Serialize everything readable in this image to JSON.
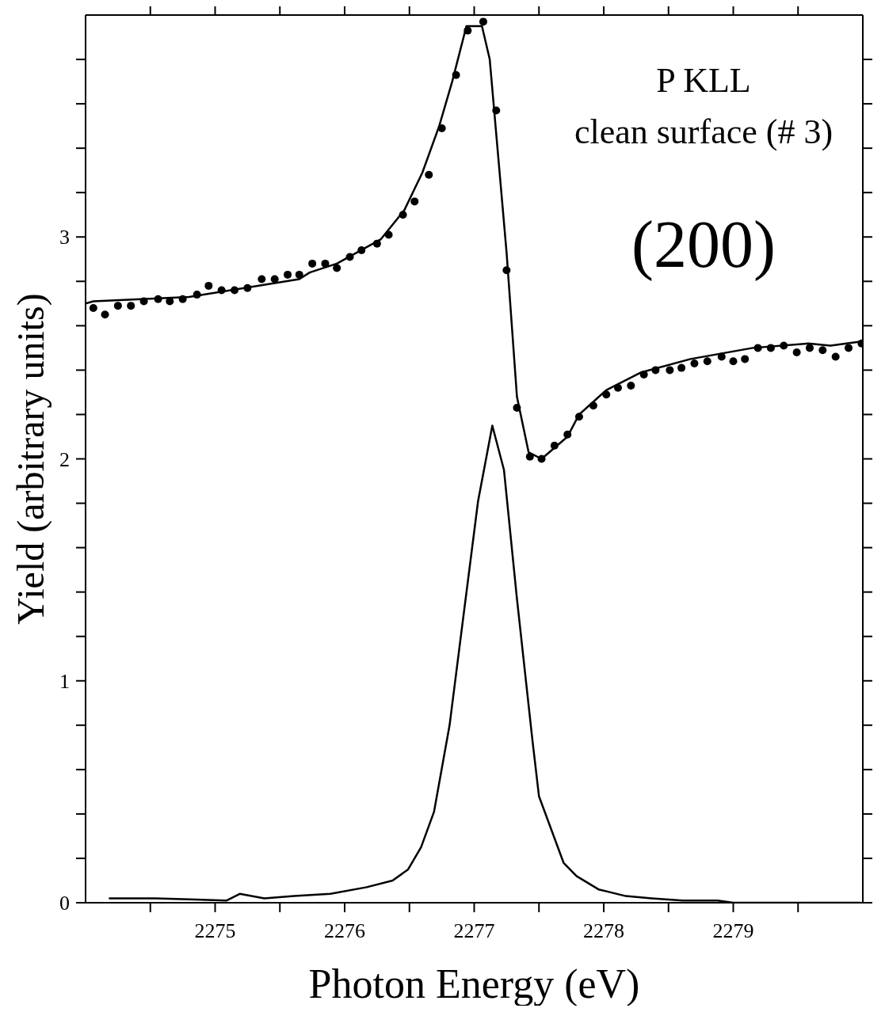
{
  "chart_data": {
    "type": "line",
    "xlabel": "Photon Energy (eV)",
    "ylabel": "Yield (arbitrary units)",
    "annotations": [
      "P KLL",
      "clean surface (# 3)",
      "(200)"
    ],
    "xlim": [
      2274,
      2280
    ],
    "ylim": [
      0,
      4
    ],
    "xticks": [
      {
        "value": 2274.5,
        "label": null
      },
      2275,
      {
        "value": 2275.5,
        "label": null
      },
      2276,
      {
        "value": 2276.5,
        "label": null
      },
      2277,
      {
        "value": 2277.5,
        "label": null
      },
      2278,
      {
        "value": 2278.5,
        "label": null
      },
      2279,
      {
        "value": 2279.5,
        "label": null
      }
    ],
    "yticks": [
      0,
      {
        "value": 0.2,
        "label": null
      },
      {
        "value": 0.4,
        "label": null
      },
      {
        "value": 0.6,
        "label": null
      },
      {
        "value": 0.8,
        "label": null
      },
      1,
      {
        "value": 1.2,
        "label": null
      },
      {
        "value": 1.4,
        "label": null
      },
      {
        "value": 1.6,
        "label": null
      },
      {
        "value": 1.8,
        "label": null
      },
      2,
      {
        "value": 2.2,
        "label": null
      },
      {
        "value": 2.4,
        "label": null
      },
      {
        "value": 2.6,
        "label": null
      },
      {
        "value": 2.8,
        "label": null
      },
      3,
      {
        "value": 3.2,
        "label": null
      },
      {
        "value": 3.4,
        "label": null
      },
      {
        "value": 3.6,
        "label": null
      },
      {
        "value": 3.8,
        "label": null
      }
    ],
    "series": [
      {
        "type": "scatter",
        "marker": "circle",
        "color": "#000000",
        "x": [
          2274.06,
          2274.15,
          2274.25,
          2274.35,
          2274.45,
          2274.56,
          2274.65,
          2274.75,
          2274.86,
          2274.95,
          2275.05,
          2275.15,
          2275.25,
          2275.36,
          2275.46,
          2275.56,
          2275.65,
          2275.75,
          2275.85,
          2275.94,
          2276.04,
          2276.13,
          2276.25,
          2276.34,
          2276.45,
          2276.54,
          2276.65,
          2276.75,
          2276.86,
          2276.95,
          2277.07,
          2277.17,
          2277.25,
          2277.33,
          2277.43,
          2277.52,
          2277.62,
          2277.72,
          2277.81,
          2277.92,
          2278.02,
          2278.11,
          2278.21,
          2278.31,
          2278.4,
          2278.51,
          2278.6,
          2278.7,
          2278.8,
          2278.91,
          2279.0,
          2279.09,
          2279.19,
          2279.29,
          2279.39,
          2279.49,
          2279.59,
          2279.69,
          2279.79,
          2279.89,
          2279.99
        ],
        "values": [
          2.68,
          2.65,
          2.69,
          2.69,
          2.71,
          2.72,
          2.71,
          2.72,
          2.74,
          2.78,
          2.76,
          2.76,
          2.77,
          2.81,
          2.81,
          2.83,
          2.83,
          2.88,
          2.88,
          2.86,
          2.91,
          2.94,
          2.97,
          3.01,
          3.1,
          3.16,
          3.28,
          3.49,
          3.73,
          3.93,
          3.97,
          3.57,
          2.85,
          2.23,
          2.01,
          2.0,
          2.06,
          2.11,
          2.19,
          2.24,
          2.29,
          2.32,
          2.33,
          2.38,
          2.4,
          2.4,
          2.41,
          2.43,
          2.44,
          2.46,
          2.44,
          2.45,
          2.5,
          2.5,
          2.51,
          2.48,
          2.5,
          2.49,
          2.46,
          2.5,
          2.52
        ]
      },
      {
        "marker": "none",
        "color": "#000000",
        "x": [
          2274.0,
          2274.06,
          2274.8,
          2275.65,
          2275.73,
          2275.94,
          2276.28,
          2276.46,
          2276.6,
          2276.73,
          2276.83,
          2276.94,
          2277.06,
          2277.12,
          2277.25,
          2277.33,
          2277.42,
          2277.52,
          2277.72,
          2277.81,
          2278.02,
          2278.29,
          2278.67,
          2279.15,
          2279.58,
          2279.75,
          2280.0
        ],
        "values": [
          2.7,
          2.71,
          2.73,
          2.81,
          2.84,
          2.88,
          2.99,
          3.12,
          3.29,
          3.5,
          3.7,
          3.95,
          3.95,
          3.8,
          2.93,
          2.28,
          2.03,
          2.0,
          2.1,
          2.2,
          2.31,
          2.39,
          2.45,
          2.5,
          2.52,
          2.51,
          2.53
        ]
      },
      {
        "marker": "none",
        "color": "#000000",
        "x": [
          2274.18,
          2274.54,
          2275.09,
          2275.19,
          2275.38,
          2275.61,
          2275.89,
          2276.17,
          2276.37,
          2276.49,
          2276.59,
          2276.69,
          2276.81,
          2276.91,
          2277.03,
          2277.14,
          2277.23,
          2277.33,
          2277.45,
          2277.5,
          2277.69,
          2277.79,
          2277.96,
          2278.17,
          2278.37,
          2278.61,
          2278.88,
          2279.0,
          2279.52,
          2279.98
        ],
        "values": [
          0.02,
          0.02,
          0.01,
          0.04,
          0.02,
          0.03,
          0.04,
          0.07,
          0.1,
          0.15,
          0.25,
          0.41,
          0.8,
          1.26,
          1.81,
          2.15,
          1.95,
          1.37,
          0.73,
          0.48,
          0.18,
          0.12,
          0.06,
          0.03,
          0.02,
          0.01,
          0.01,
          0.0,
          0.0,
          0.0
        ]
      }
    ]
  }
}
